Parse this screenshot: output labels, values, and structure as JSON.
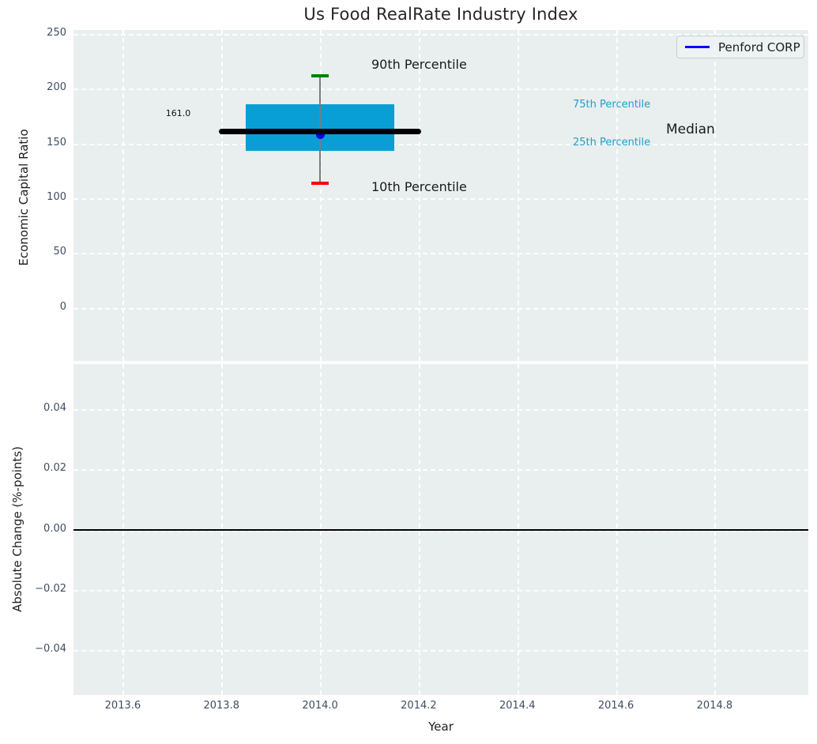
{
  "figure": {
    "title": "Us Food RealRate Industry Index"
  },
  "colors": {
    "axes_background": "#e9eeee",
    "grid": "#ffffff",
    "box_fill": "#0a9fd4",
    "median_line": "#000000",
    "whisker": "#7a7a7a",
    "cap_90th": "#008000",
    "cap_10th": "#ff0000",
    "company_marker": "#0000ee",
    "legend_line": "#0000ff",
    "percentile_label": "#1d9fd1",
    "tick_label": "#3f4d63",
    "zero_line": "#000000"
  },
  "chart_data": [
    {
      "type": "boxplot",
      "panel": "top",
      "title": "Us Food RealRate Industry Index",
      "ylabel": "Economic Capital Ratio",
      "xlabel": "",
      "xlim": [
        2013.5,
        2014.99
      ],
      "ylim": [
        -48.5,
        253.5
      ],
      "grid": true,
      "legend": {
        "label": "Penford CORP",
        "position": "upper right"
      },
      "yticks": {
        "values": [
          250,
          200,
          150,
          100,
          50,
          0
        ],
        "labels": [
          "250",
          "200",
          "150",
          "100",
          "50",
          "0"
        ]
      },
      "xticks": {
        "values": [
          2013.6,
          2013.8,
          2014.0,
          2014.2,
          2014.4,
          2014.6,
          2014.8
        ],
        "labels": []
      },
      "box": {
        "x": 2014.0,
        "p10": 114,
        "p25": 143,
        "median": 161,
        "p75": 186,
        "p90": 212,
        "company_value": 158,
        "median_value_label": "161.0",
        "box_halfwidth": 0.15,
        "median_line_halfwidth": 0.205,
        "cap_halfwidth": 0.018
      },
      "annotations": {
        "p90": "90th Percentile",
        "p10": "10th Percentile",
        "p75": "75th Percentile",
        "p25": "25th Percentile",
        "median": "Median"
      }
    },
    {
      "type": "line",
      "panel": "bottom",
      "ylabel": "Absolute Change (%-points)",
      "xlabel": "Year",
      "xlim": [
        2013.5,
        2014.99
      ],
      "ylim": [
        -0.0548,
        0.0548
      ],
      "grid": true,
      "zero_line": 0.0,
      "yticks": {
        "values": [
          0.04,
          0.02,
          0.0,
          -0.02,
          -0.04
        ],
        "labels": [
          "0.04",
          "0.02",
          "0.00",
          "−0.02",
          "−0.04"
        ]
      },
      "xticks": {
        "values": [
          2013.6,
          2013.8,
          2014.0,
          2014.2,
          2014.4,
          2014.6,
          2014.8
        ],
        "labels": [
          "2013.6",
          "2013.8",
          "2014.0",
          "2014.2",
          "2014.4",
          "2014.6",
          "2014.8"
        ]
      },
      "series": []
    }
  ]
}
